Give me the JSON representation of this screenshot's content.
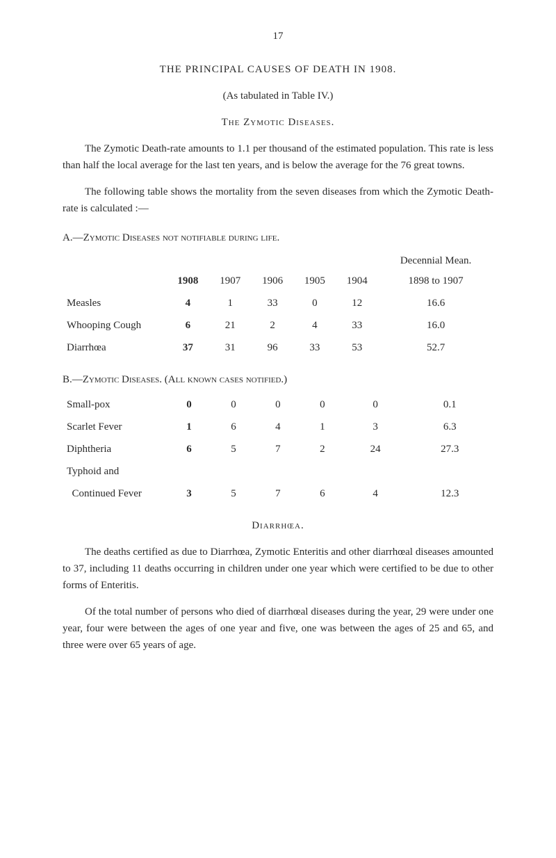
{
  "pageNumber": "17",
  "mainTitle": "THE PRINCIPAL CAUSES OF DEATH IN 1908.",
  "subtitle": "(As tabulated in Table IV.)",
  "sectionHeading1": "The Zymotic Diseases.",
  "para1": "The Zymotic Death-rate amounts to 1.1 per thousand of the estimated population. This rate is less than half the local average for the last ten years, and is below the average for the 76 great towns.",
  "para2": "The following table shows the mortality from the seven diseases from which the Zymotic Death-rate is calculated :—",
  "tableAHeading": "A.—Zymotic Diseases not notifiable during life.",
  "tableA": {
    "decennialLabel": "Decennial Mean.",
    "years": [
      "1908",
      "1907",
      "1906",
      "1905",
      "1904"
    ],
    "decennialRange": "1898 to 1907",
    "rows": [
      {
        "label": "Measles",
        "vals": [
          "4",
          "1",
          "33",
          "0",
          "12",
          "16.6"
        ]
      },
      {
        "label": "Whooping Cough",
        "vals": [
          "6",
          "21",
          "2",
          "4",
          "33",
          "16.0"
        ]
      },
      {
        "label": "Diarrhœa",
        "vals": [
          "37",
          "31",
          "96",
          "33",
          "53",
          "52.7"
        ]
      }
    ]
  },
  "tableBHeading": "B.—Zymotic Diseases.   (All known cases notified.)",
  "tableB": {
    "rows": [
      {
        "label": "Small-pox",
        "vals": [
          "0",
          "0",
          "0",
          "0",
          "0",
          "0.1"
        ]
      },
      {
        "label": "Scarlet Fever",
        "vals": [
          "1",
          "6",
          "4",
          "1",
          "3",
          "6.3"
        ]
      },
      {
        "label": "Diphtheria",
        "vals": [
          "6",
          "5",
          "7",
          "2",
          "24",
          "27.3"
        ]
      },
      {
        "label": "Typhoid and",
        "vals": [
          "",
          "",
          "",
          "",
          "",
          ""
        ]
      },
      {
        "label": "  Continued Fever",
        "vals": [
          "3",
          "5",
          "7",
          "6",
          "4",
          "12.3"
        ]
      }
    ]
  },
  "diarrhoeaHeading": "Diarrhœa.",
  "para3": "The deaths certified as due to Diarrhœa, Zymotic Enteritis and other diarrhœal diseases amounted to 37, including 11 deaths occurring in children under one year which were certified to be due to other forms of Enteritis.",
  "para4": "Of the total number of persons who died of diarrhœal diseases during the year, 29 were under one year, four were between the ages of one year and five, one was between the ages of 25 and 65, and three were over 65 years of age."
}
